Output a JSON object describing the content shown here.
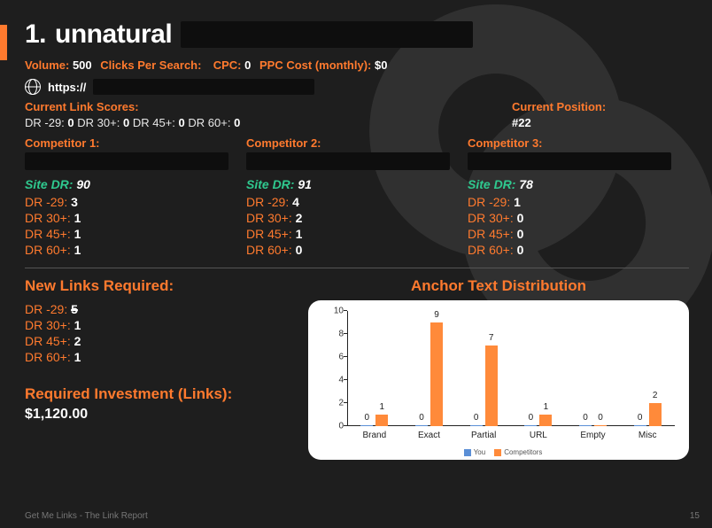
{
  "accent_color": "#ff7a2e",
  "background_color": "#1e1e1e",
  "title_number": "1.",
  "title_keyword": "unnatural",
  "meta": {
    "volume_label": "Volume:",
    "volume_value": "500",
    "cps_label": "Clicks Per Search:",
    "cps_value": "",
    "cpc_label": "CPC:",
    "cpc_value": "0",
    "ppc_label": "PPC Cost (monthly):",
    "ppc_value": "$0"
  },
  "url_prefix": "https://",
  "link_scores": {
    "heading": "Current Link Scores:",
    "parts": [
      {
        "k": "DR -29:",
        "v": "0"
      },
      {
        "k": "DR 30+:",
        "v": "0"
      },
      {
        "k": "DR 45+:",
        "v": "0"
      },
      {
        "k": "DR 60+:",
        "v": "0"
      }
    ]
  },
  "current_position": {
    "heading": "Current Position:",
    "value": "#22"
  },
  "competitors": [
    {
      "heading": "Competitor 1:",
      "site_dr": "90",
      "rows": [
        {
          "k": "DR -29:",
          "v": "3"
        },
        {
          "k": "DR 30+:",
          "v": "1"
        },
        {
          "k": "DR 45+:",
          "v": "1"
        },
        {
          "k": "DR 60+:",
          "v": "1"
        }
      ]
    },
    {
      "heading": "Competitor 2:",
      "site_dr": "91",
      "rows": [
        {
          "k": "DR -29:",
          "v": "4"
        },
        {
          "k": "DR 30+:",
          "v": "2"
        },
        {
          "k": "DR 45+:",
          "v": "1"
        },
        {
          "k": "DR 60+:",
          "v": "0"
        }
      ]
    },
    {
      "heading": "Competitor 3:",
      "site_dr": "78",
      "rows": [
        {
          "k": "DR -29:",
          "v": "1"
        },
        {
          "k": "DR 30+:",
          "v": "0"
        },
        {
          "k": "DR 45+:",
          "v": "0"
        },
        {
          "k": "DR 60+:",
          "v": "0"
        }
      ]
    }
  ],
  "site_dr_label": "Site DR:",
  "new_links": {
    "heading": "New Links Required:",
    "rows": [
      {
        "k": "DR -29:",
        "v": "5",
        "strike": true
      },
      {
        "k": "DR 30+:",
        "v": "1",
        "strike": false
      },
      {
        "k": "DR 45+:",
        "v": "2",
        "strike": false
      },
      {
        "k": "DR 60+:",
        "v": "1",
        "strike": false
      }
    ]
  },
  "investment": {
    "heading": "Required Investment (Links):",
    "value": "$1,120.00"
  },
  "chart": {
    "title": "Anchor Text Distribution",
    "type": "bar",
    "ymax": 10,
    "ytick_step": 2,
    "yticks": [
      0,
      2,
      4,
      6,
      8,
      10
    ],
    "categories": [
      "Brand",
      "Exact",
      "Partial",
      "URL",
      "Empty",
      "Misc"
    ],
    "series": [
      {
        "name": "You",
        "color": "#5b8fd6",
        "values": [
          0,
          0,
          0,
          0,
          0,
          0
        ]
      },
      {
        "name": "Competitors",
        "color": "#ff8a3a",
        "values": [
          1,
          9,
          7,
          1,
          0,
          2
        ]
      }
    ],
    "background_color": "#ffffff",
    "axis_color": "#222222",
    "label_fontsize": 10
  },
  "footer_text": "Get Me Links - The Link Report",
  "page_number": "15"
}
